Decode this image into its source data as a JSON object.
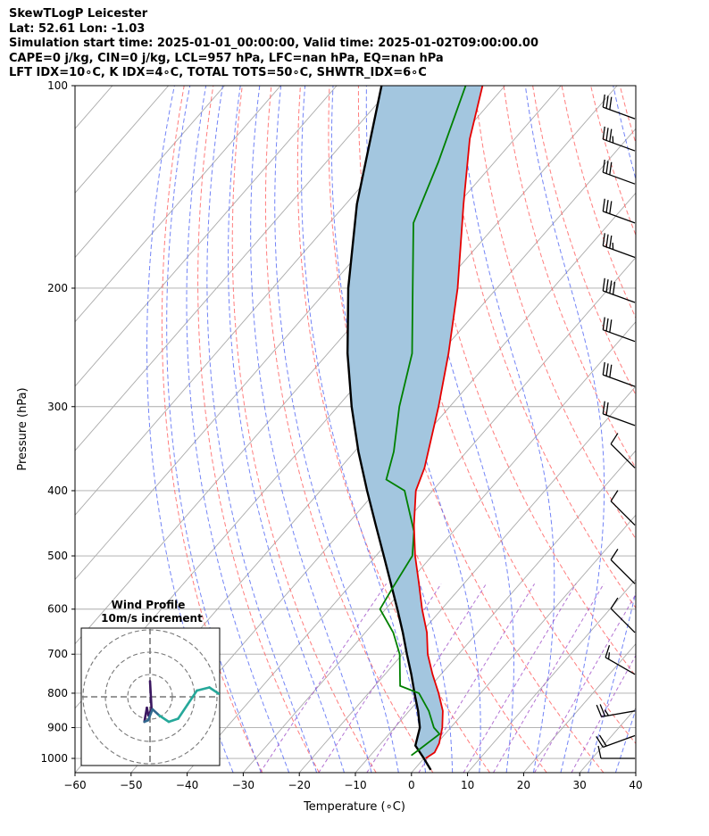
{
  "header": {
    "title": "SkewTLogP Leicester",
    "location": "Lat: 52.61   Lon: -1.03",
    "times": "Simulation start time: 2025-01-01_00:00:00, Valid time: 2025-01-02T09:00:00.00",
    "params": "CAPE=0 j/kg, CIN=0 j/kg, LCL=957 hPa, LFC=nan hPa, EQ=nan hPa",
    "indices": "LFT IDX=10∘C, K IDX=4∘C, TOTAL TOTS=50∘C, SHWTR_IDX=6∘C"
  },
  "chart_data": {
    "type": "line",
    "subtype": "skew-t log-p",
    "xlabel": "Temperature (∘C)",
    "ylabel": "Pressure (hPa)",
    "xlim": [
      -60,
      40
    ],
    "ylim": [
      1050,
      100
    ],
    "xticks": [
      -60,
      -50,
      -40,
      -30,
      -20,
      -10,
      0,
      10,
      20,
      30,
      40
    ],
    "xtick_labels": [
      "−60",
      "−50",
      "−40",
      "−30",
      "−20",
      "−10",
      "0",
      "10",
      "20",
      "30",
      "40"
    ],
    "yticks": [
      1000,
      900,
      800,
      700,
      600,
      500,
      400,
      300,
      200,
      100
    ],
    "ytick_labels": [
      "1000",
      "900",
      "800",
      "700",
      "600",
      "500",
      "400",
      "300",
      "200",
      "100"
    ],
    "colors": {
      "temperature": "#e60000",
      "dewpoint": "#008000",
      "parcel": "#000000",
      "shade": "#a3c6df",
      "dry_adiabat": "#ff6666",
      "moist_adiabat": "#5a6ef5",
      "mixing_ratio": "#a050c8",
      "isotherm": "#aaaaaa"
    },
    "series": [
      {
        "name": "temperature",
        "points": [
          {
            "p": 1000,
            "t": 0.3
          },
          {
            "p": 980,
            "t": 1.0
          },
          {
            "p": 950,
            "t": 0.4
          },
          {
            "p": 900,
            "t": -1.5
          },
          {
            "p": 850,
            "t": -4.0
          },
          {
            "p": 800,
            "t": -7.5
          },
          {
            "p": 750,
            "t": -11.5
          },
          {
            "p": 700,
            "t": -15.5
          },
          {
            "p": 650,
            "t": -19.0
          },
          {
            "p": 600,
            "t": -23.5
          },
          {
            "p": 550,
            "t": -28.0
          },
          {
            "p": 500,
            "t": -33.0
          },
          {
            "p": 450,
            "t": -38.0
          },
          {
            "p": 400,
            "t": -43.0
          },
          {
            "p": 370,
            "t": -45.0
          },
          {
            "p": 300,
            "t": -52.0
          },
          {
            "p": 250,
            "t": -58.5
          },
          {
            "p": 200,
            "t": -67.0
          },
          {
            "p": 150,
            "t": -79.0
          },
          {
            "p": 120,
            "t": -88.0
          },
          {
            "p": 100,
            "t": -94.0
          }
        ]
      },
      {
        "name": "dewpoint",
        "points": [
          {
            "p": 990,
            "t": -2.7
          },
          {
            "p": 970,
            "t": -2.2
          },
          {
            "p": 940,
            "t": -1.5
          },
          {
            "p": 920,
            "t": -1.0
          },
          {
            "p": 900,
            "t": -3.0
          },
          {
            "p": 850,
            "t": -6.5
          },
          {
            "p": 800,
            "t": -11.0
          },
          {
            "p": 780,
            "t": -15.5
          },
          {
            "p": 700,
            "t": -20.5
          },
          {
            "p": 650,
            "t": -25.0
          },
          {
            "p": 600,
            "t": -31.0
          },
          {
            "p": 560,
            "t": -32.0
          },
          {
            "p": 500,
            "t": -33.5
          },
          {
            "p": 460,
            "t": -37.0
          },
          {
            "p": 400,
            "t": -45.0
          },
          {
            "p": 385,
            "t": -50.0
          },
          {
            "p": 350,
            "t": -53.0
          },
          {
            "p": 300,
            "t": -59.0
          },
          {
            "p": 250,
            "t": -65.0
          },
          {
            "p": 200,
            "t": -75.0
          },
          {
            "p": 160,
            "t": -85.0
          },
          {
            "p": 130,
            "t": -90.0
          },
          {
            "p": 100,
            "t": -97.0
          }
        ]
      },
      {
        "name": "parcel",
        "points": [
          {
            "p": 1040,
            "t": 3.0
          },
          {
            "p": 1000,
            "t": 0.0
          },
          {
            "p": 957,
            "t": -3.5
          },
          {
            "p": 900,
            "t": -5.5
          },
          {
            "p": 850,
            "t": -8.4
          },
          {
            "p": 800,
            "t": -11.8
          },
          {
            "p": 750,
            "t": -15.3
          },
          {
            "p": 700,
            "t": -19.2
          },
          {
            "p": 650,
            "t": -23.3
          },
          {
            "p": 600,
            "t": -27.9
          },
          {
            "p": 550,
            "t": -33.0
          },
          {
            "p": 500,
            "t": -38.6
          },
          {
            "p": 450,
            "t": -44.8
          },
          {
            "p": 400,
            "t": -51.7
          },
          {
            "p": 350,
            "t": -59.3
          },
          {
            "p": 300,
            "t": -67.5
          },
          {
            "p": 250,
            "t": -76.5
          },
          {
            "p": 200,
            "t": -86.5
          },
          {
            "p": 150,
            "t": -98.0
          },
          {
            "p": 100,
            "t": -112.0
          }
        ]
      }
    ],
    "wind_barbs": [
      {
        "p": 1000,
        "speed_kt": 10,
        "dir_deg": 270
      },
      {
        "p": 925,
        "speed_kt": 20,
        "dir_deg": 250
      },
      {
        "p": 850,
        "speed_kt": 25,
        "dir_deg": 260
      },
      {
        "p": 750,
        "speed_kt": 15,
        "dir_deg": 300
      },
      {
        "p": 650,
        "speed_kt": 10,
        "dir_deg": 315
      },
      {
        "p": 550,
        "speed_kt": 10,
        "dir_deg": 315
      },
      {
        "p": 450,
        "speed_kt": 10,
        "dir_deg": 315
      },
      {
        "p": 370,
        "speed_kt": 10,
        "dir_deg": 315
      },
      {
        "p": 320,
        "speed_kt": 20,
        "dir_deg": 290
      },
      {
        "p": 280,
        "speed_kt": 30,
        "dir_deg": 290
      },
      {
        "p": 240,
        "speed_kt": 30,
        "dir_deg": 290
      },
      {
        "p": 210,
        "speed_kt": 40,
        "dir_deg": 290
      },
      {
        "p": 180,
        "speed_kt": 35,
        "dir_deg": 290
      },
      {
        "p": 160,
        "speed_kt": 30,
        "dir_deg": 290
      },
      {
        "p": 140,
        "speed_kt": 30,
        "dir_deg": 290
      },
      {
        "p": 125,
        "speed_kt": 35,
        "dir_deg": 290
      },
      {
        "p": 112,
        "speed_kt": 30,
        "dir_deg": 290
      }
    ],
    "inset": {
      "title": "Wind Profile",
      "subtitle": "10m/s increment",
      "hodograph": [
        {
          "u": 0,
          "v": 1
        },
        {
          "u": 0.5,
          "v": -0.8
        },
        {
          "u": -0.5,
          "v": -1.2
        },
        {
          "u": -1.0,
          "v": -0.7
        },
        {
          "u": -1.8,
          "v": -1.6
        },
        {
          "u": -0.6,
          "v": -1.5
        },
        {
          "u": 0.8,
          "v": -0.8
        },
        {
          "u": 3,
          "v": -1.2
        },
        {
          "u": 6,
          "v": -1.6
        },
        {
          "u": 9,
          "v": -1.4
        },
        {
          "u": 12,
          "v": -0.5
        },
        {
          "u": 15,
          "v": 0.4
        },
        {
          "u": 19,
          "v": 0.6
        },
        {
          "u": 22,
          "v": 0.2
        }
      ]
    }
  }
}
